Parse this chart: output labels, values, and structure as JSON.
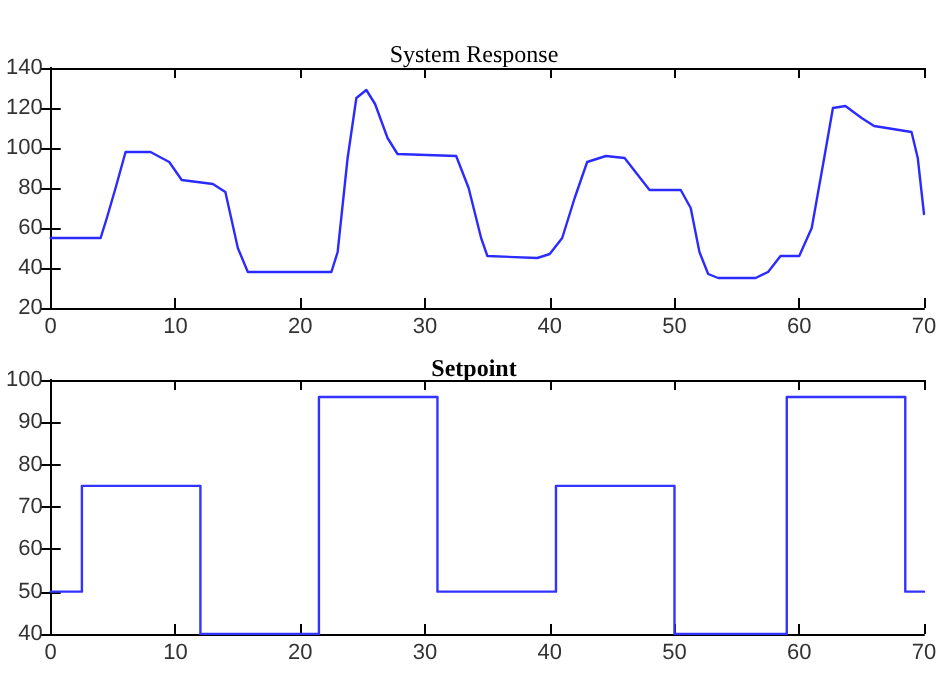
{
  "chart_data": [
    {
      "type": "line",
      "title": "System Response",
      "x": [
        0,
        4,
        4.5,
        5.2,
        6,
        8,
        9.5,
        10.5,
        13,
        14,
        15,
        15.8,
        22.5,
        23,
        23.8,
        24.5,
        25.3,
        26,
        27,
        27.8,
        32.5,
        33.5,
        34.5,
        35,
        39,
        40,
        41,
        42,
        43,
        44.5,
        46,
        47,
        48,
        50.5,
        51.3,
        52,
        52.7,
        53.5,
        56.5,
        57.5,
        58.5,
        60,
        61,
        62,
        62.7,
        63.7,
        65,
        66,
        69,
        69.5,
        70
      ],
      "series": [
        {
          "color": "#2b2bff",
          "values": [
            55,
            55,
            65,
            80,
            98,
            98,
            93,
            84,
            82,
            78,
            50,
            38,
            38,
            48,
            95,
            125,
            129,
            122,
            105,
            97,
            96,
            80,
            55,
            46,
            45,
            47,
            55,
            75,
            93,
            96,
            95,
            87,
            79,
            79,
            70,
            48,
            37,
            35,
            35,
            38,
            46,
            46,
            60,
            95,
            120,
            121,
            115,
            111,
            108,
            95,
            67
          ]
        }
      ],
      "xlim": [
        0,
        70
      ],
      "xticks": [
        0,
        10,
        20,
        30,
        40,
        50,
        60,
        70
      ],
      "ylim": [
        20,
        140
      ],
      "yticks": [
        20,
        40,
        60,
        80,
        100,
        120,
        140
      ],
      "grid": false,
      "marker": "none",
      "line_style": "solid"
    },
    {
      "type": "step",
      "title": "Setpoint",
      "x": [
        0,
        2.5,
        12,
        21.5,
        31,
        40.5,
        50,
        59,
        68.5,
        70
      ],
      "series": [
        {
          "color": "#3333ff",
          "values": [
            50,
            75,
            40,
            96,
            50,
            75,
            40,
            96,
            50,
            50
          ]
        }
      ],
      "xlim": [
        0,
        70
      ],
      "xticks": [
        0,
        10,
        20,
        30,
        40,
        50,
        60,
        70
      ],
      "ylim": [
        40,
        100
      ],
      "yticks": [
        40,
        50,
        60,
        70,
        80,
        90,
        100
      ],
      "grid": false,
      "marker": "none",
      "line_style": "solid"
    }
  ]
}
